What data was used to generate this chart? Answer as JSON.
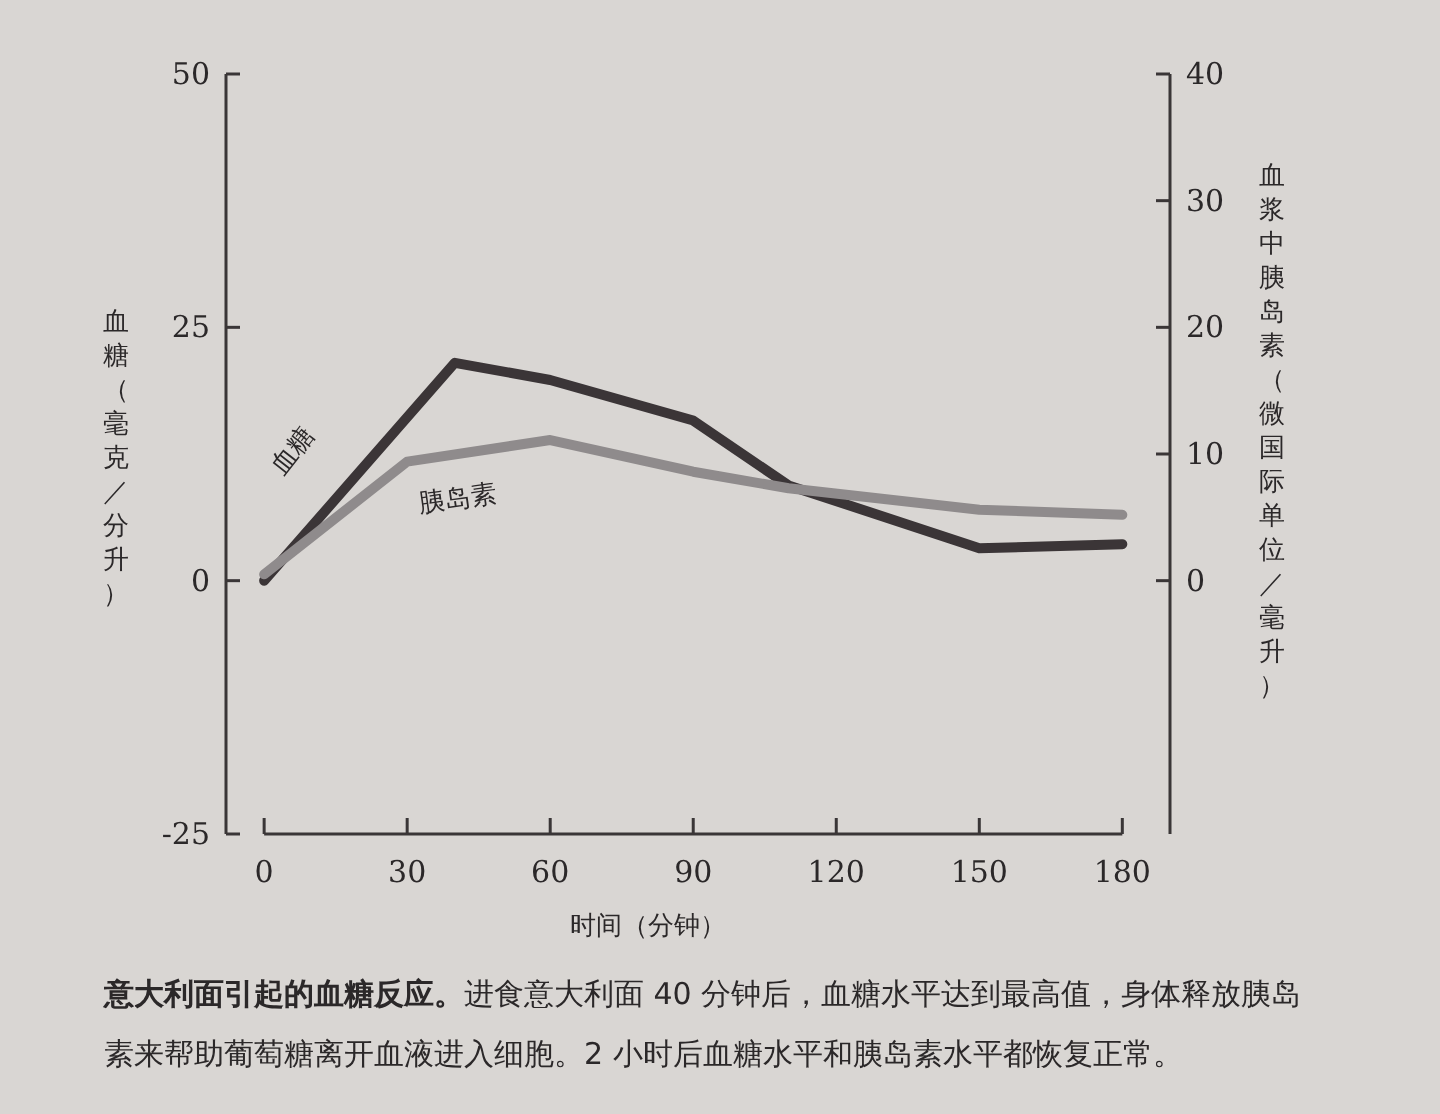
{
  "chart_data": {
    "type": "line",
    "xlabel": "时间（分钟）",
    "ylabel": "血糖（毫克／分升）",
    "y2label": "血浆中胰岛素（微国际单位／毫升）",
    "xlim": [
      -8,
      190
    ],
    "xticks": [
      0,
      30,
      60,
      90,
      120,
      150,
      180
    ],
    "ylim": [
      -25,
      50
    ],
    "yticks": [
      -25,
      0,
      25,
      50
    ],
    "y2lim": [
      -20,
      40
    ],
    "y2ticks": [
      0,
      10,
      20,
      30,
      40
    ],
    "series": [
      {
        "name": "血糖",
        "color": "#3b3537",
        "x": [
          0,
          40,
          60,
          90,
          110,
          150,
          180
        ],
        "values": [
          0,
          21.5,
          19.8,
          15.8,
          9.4,
          3.2,
          3.6
        ]
      },
      {
        "name": "胰岛素",
        "color": "#8f8b8c",
        "axis": "y2",
        "x": [
          0,
          30,
          60,
          90,
          110,
          150,
          180
        ],
        "values": [
          0.5,
          9.4,
          11.1,
          8.6,
          7.3,
          5.6,
          5.2
        ]
      }
    ],
    "annotations": [
      "意大利面引起的血糖反应。",
      "进食意大利面 40 分钟后，血糖水平达到最高值，身体释放胰岛素来帮助葡萄糖离开血液进入细胞。2 小时后血糖水平和胰岛素水平都恢复正常。"
    ]
  }
}
